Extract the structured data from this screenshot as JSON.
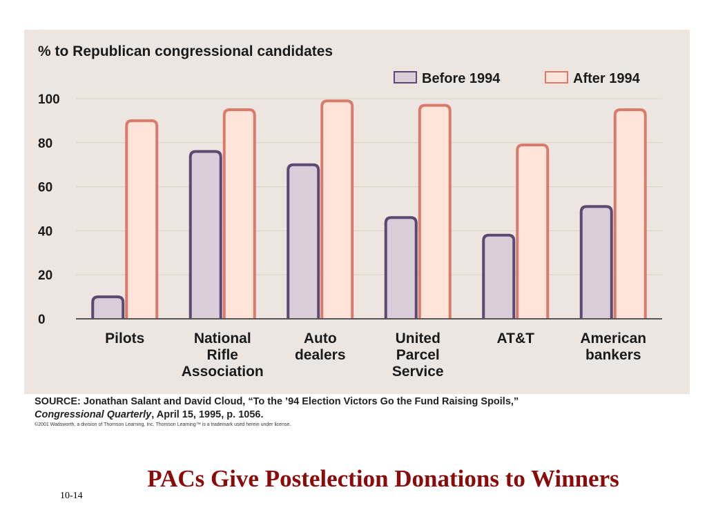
{
  "chart_data": {
    "type": "bar",
    "title": "% to Republican congressional candidates",
    "categories": [
      [
        "Pilots"
      ],
      [
        "National",
        "Rifle",
        "Association"
      ],
      [
        "Auto",
        "dealers"
      ],
      [
        "United",
        "Parcel",
        "Service"
      ],
      [
        "AT&T"
      ],
      [
        "American",
        "bankers"
      ]
    ],
    "series": [
      {
        "name": "Before 1994",
        "values": [
          10,
          76,
          70,
          46,
          38,
          51
        ],
        "fill": "#d8cdd8",
        "stroke": "#5a4a72"
      },
      {
        "name": "After 1994",
        "values": [
          90,
          95,
          99,
          97,
          79,
          95
        ],
        "fill": "#fde3d8",
        "stroke": "#d97a6c"
      }
    ],
    "ylim": [
      0,
      100
    ],
    "yticks": [
      "0",
      "20",
      "40",
      "60",
      "80",
      "100"
    ],
    "grid": true,
    "legend": "top-right"
  },
  "source": {
    "line1": "SOURCE: Jonathan Salant and David Cloud, “To the ’94 Election Victors Go the Fund Raising Spoils,”",
    "publication": "Congressional Quarterly",
    "line2_rest": ", April 15, 1995, p. 1056.",
    "copyright": "©2001 Wadsworth, a division of Thomson Learning, Inc. Thomson Learning™ is a trademark used herein under license."
  },
  "slide": {
    "title": "PACs Give Postelection Donations to Winners",
    "number": "10-14"
  }
}
